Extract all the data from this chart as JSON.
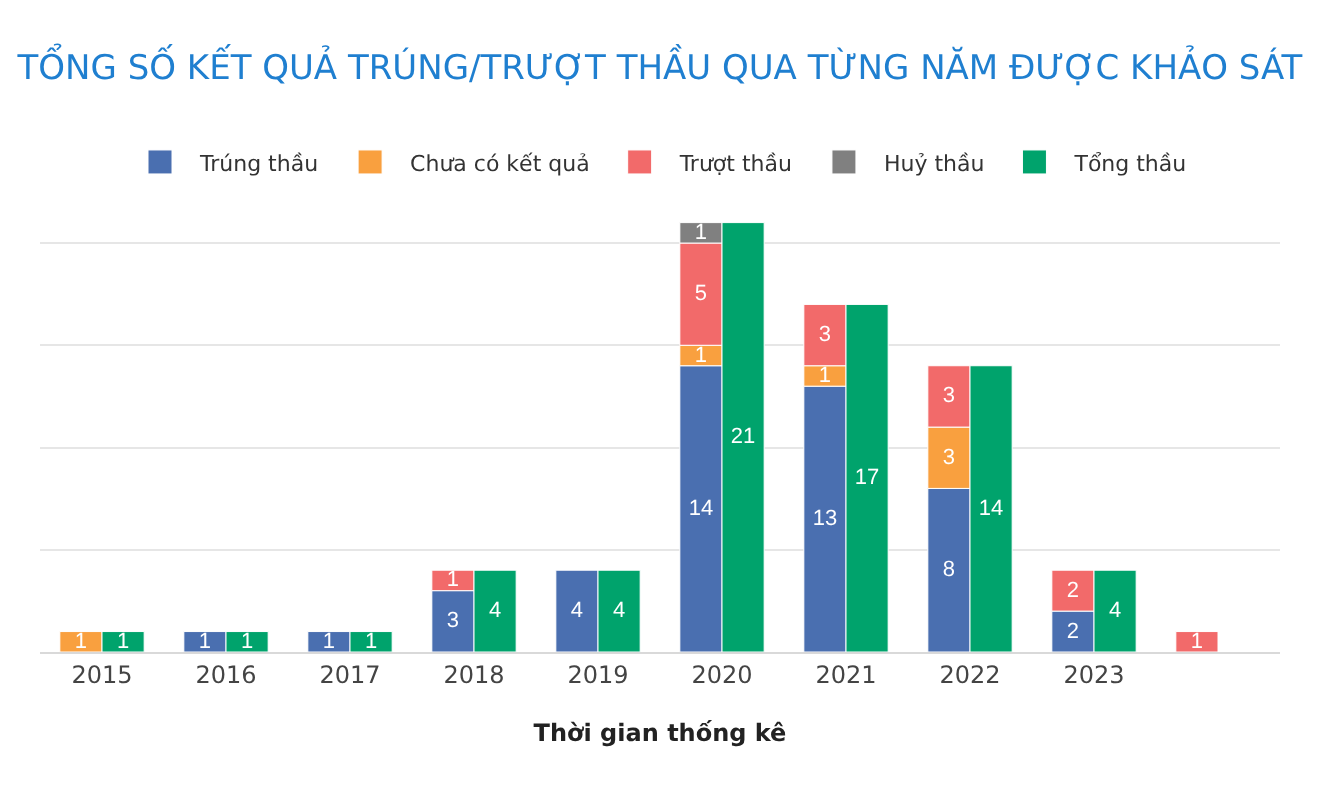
{
  "chart_data": {
    "type": "bar",
    "title": "TỔNG SỐ KẾT QUẢ TRÚNG/TRƯỢT THẦU QUA TỪNG NĂM ĐƯỢC KHẢO SÁT",
    "xlabel": "Thời gian thống kê",
    "categories": [
      "2015",
      "2016",
      "2017",
      "2018",
      "2019",
      "2020",
      "2021",
      "2022",
      "2023",
      null
    ],
    "stacked": true,
    "data_labels": true,
    "legend": "top",
    "grid": "y",
    "tick_labels": "x",
    "yticks": [
      {
        "value": 0,
        "label": null
      },
      {
        "value": 5,
        "label": null
      },
      {
        "value": 10,
        "label": null
      },
      {
        "value": 15,
        "label": null
      },
      {
        "value": 20,
        "label": null
      }
    ],
    "series": [
      {
        "name": "Trúng thầu",
        "color": "#4a6fb0",
        "values": [
          null,
          1,
          1,
          3,
          4,
          14,
          13,
          8,
          2,
          null
        ]
      },
      {
        "name": "Chưa có kết quả",
        "color": "#f9a03f",
        "values": [
          1,
          null,
          null,
          null,
          null,
          1,
          1,
          3,
          null,
          null
        ]
      },
      {
        "name": "Trượt thầu",
        "color": "#f26a6a",
        "values": [
          null,
          null,
          null,
          1,
          null,
          5,
          3,
          3,
          2,
          1
        ]
      },
      {
        "name": "Huỷ thầu",
        "color": "#808080",
        "values": [
          null,
          null,
          null,
          null,
          null,
          1,
          null,
          null,
          null,
          null
        ]
      },
      {
        "name": "Tổng thầu",
        "color": "#00a36c",
        "axis": "y2",
        "values": [
          1,
          1,
          1,
          4,
          4,
          21,
          17,
          14,
          4,
          null
        ]
      }
    ]
  }
}
